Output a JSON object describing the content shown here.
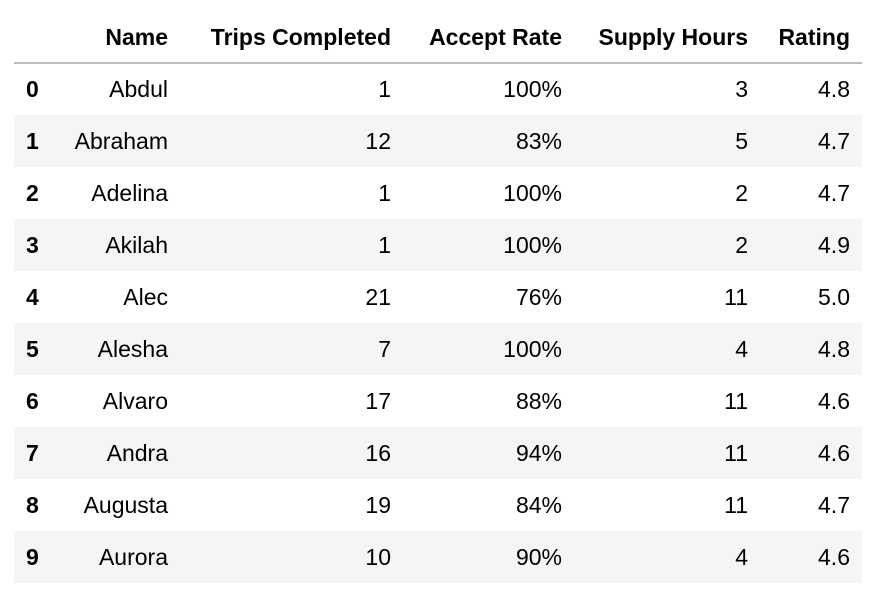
{
  "table": {
    "columns": [
      "",
      "Name",
      "Trips Completed",
      "Accept Rate",
      "Supply Hours",
      "Rating"
    ],
    "rows": [
      {
        "index": "0",
        "name": "Abdul",
        "trips": "1",
        "accept": "100%",
        "supply": "3",
        "rating": "4.8"
      },
      {
        "index": "1",
        "name": "Abraham",
        "trips": "12",
        "accept": "83%",
        "supply": "5",
        "rating": "4.7"
      },
      {
        "index": "2",
        "name": "Adelina",
        "trips": "1",
        "accept": "100%",
        "supply": "2",
        "rating": "4.7"
      },
      {
        "index": "3",
        "name": "Akilah",
        "trips": "1",
        "accept": "100%",
        "supply": "2",
        "rating": "4.9"
      },
      {
        "index": "4",
        "name": "Alec",
        "trips": "21",
        "accept": "76%",
        "supply": "11",
        "rating": "5.0"
      },
      {
        "index": "5",
        "name": "Alesha",
        "trips": "7",
        "accept": "100%",
        "supply": "4",
        "rating": "4.8"
      },
      {
        "index": "6",
        "name": "Alvaro",
        "trips": "17",
        "accept": "88%",
        "supply": "11",
        "rating": "4.6"
      },
      {
        "index": "7",
        "name": "Andra",
        "trips": "16",
        "accept": "94%",
        "supply": "11",
        "rating": "4.6"
      },
      {
        "index": "8",
        "name": "Augusta",
        "trips": "19",
        "accept": "84%",
        "supply": "11",
        "rating": "4.7"
      },
      {
        "index": "9",
        "name": "Aurora",
        "trips": "10",
        "accept": "90%",
        "supply": "4",
        "rating": "4.6"
      }
    ]
  }
}
